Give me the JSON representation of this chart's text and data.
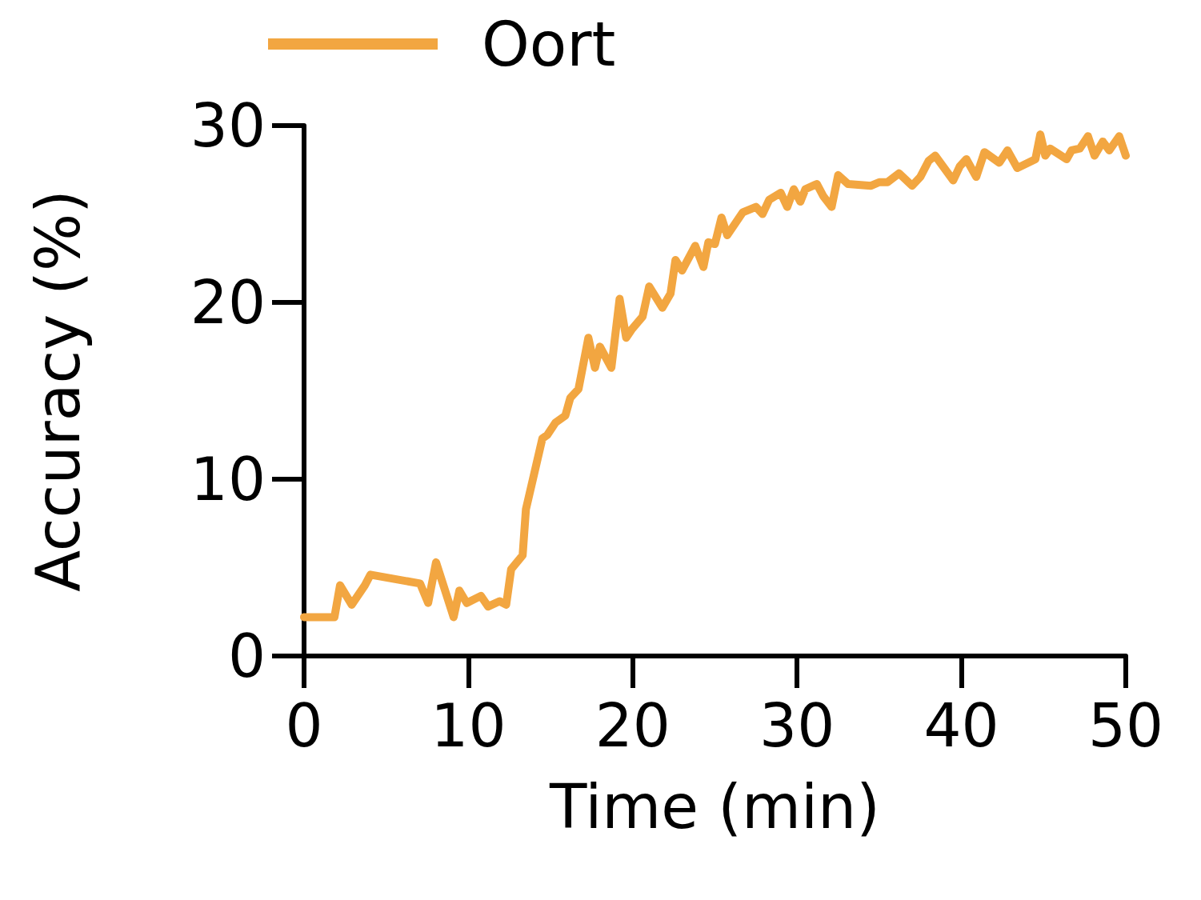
{
  "chart_data": {
    "type": "line",
    "xlabel": "Time (min)",
    "ylabel": "Accuracy (%)",
    "xlim": [
      0,
      50
    ],
    "xticks": [
      0,
      10,
      20,
      30,
      40,
      50
    ],
    "ylim": [
      0,
      30
    ],
    "yticks": [
      0,
      10,
      20,
      30
    ],
    "grid": false,
    "legend": "top",
    "line_style": "solid",
    "series": [
      {
        "name": "Oort",
        "color": "#f2a641",
        "x": [
          0,
          1.85,
          2.19,
          2.9,
          3.7,
          4.04,
          7.06,
          7.55,
          8.03,
          9.1,
          9.45,
          9.9,
          10.76,
          11.2,
          11.9,
          12.3,
          12.6,
          13.3,
          13.5,
          14.5,
          14.8,
          15.3,
          15.9,
          16.2,
          16.7,
          17.3,
          17.7,
          18.0,
          18.7,
          19.2,
          19.6,
          19.96,
          20.6,
          21.0,
          21.8,
          22.3,
          22.6,
          23.0,
          23.8,
          24.3,
          24.6,
          25.0,
          25.4,
          25.75,
          26.7,
          27.5,
          27.9,
          28.3,
          29.0,
          29.4,
          29.8,
          30.2,
          30.5,
          31.2,
          31.6,
          32.1,
          32.5,
          33.1,
          34.5,
          35.0,
          35.5,
          36.2,
          37.0,
          37.5,
          38.0,
          38.4,
          39.5,
          39.9,
          40.3,
          40.9,
          41.4,
          42.3,
          42.8,
          43.4,
          44.5,
          44.8,
          45.1,
          45.4,
          46.4,
          46.7,
          47.2,
          47.7,
          48.1,
          48.6,
          49.0,
          49.6,
          50
        ],
        "values": [
          2.2,
          2.2,
          4.0,
          2.9,
          4.0,
          4.6,
          4.1,
          3.0,
          5.3,
          2.2,
          3.7,
          3.0,
          3.4,
          2.8,
          3.1,
          2.9,
          4.9,
          5.7,
          8.3,
          12.3,
          12.5,
          13.2,
          13.6,
          14.6,
          15.1,
          18.0,
          16.3,
          17.5,
          16.3,
          20.2,
          18.0,
          18.5,
          19.2,
          20.9,
          19.7,
          20.5,
          22.4,
          21.8,
          23.2,
          22.0,
          23.4,
          23.3,
          24.8,
          23.8,
          25.1,
          25.4,
          25.0,
          25.8,
          26.2,
          25.4,
          26.4,
          25.7,
          26.4,
          26.7,
          26.0,
          25.4,
          27.2,
          26.7,
          26.6,
          26.8,
          26.8,
          27.3,
          26.6,
          27.1,
          28.0,
          28.3,
          26.9,
          27.7,
          28.1,
          27.1,
          28.5,
          27.9,
          28.6,
          27.6,
          28.1,
          29.5,
          28.3,
          28.7,
          28.1,
          28.6,
          28.7,
          29.4,
          28.3,
          29.1,
          28.6,
          29.4,
          28.3
        ]
      }
    ]
  }
}
